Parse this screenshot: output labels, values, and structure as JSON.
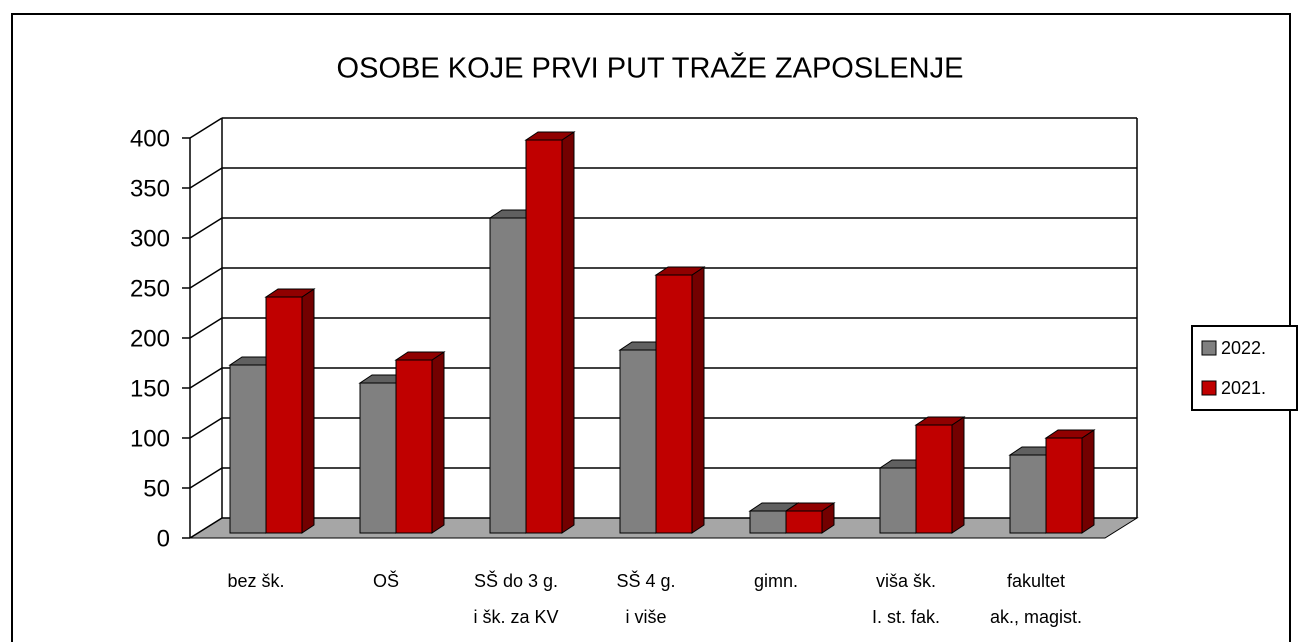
{
  "chart_data": {
    "type": "bar3d",
    "title": "OSOBE KOJE PRVI PUT TRAŽE ZAPOSLENJE",
    "categories": [
      "bez šk.",
      "OŠ",
      "SŠ do 3 g.\ni šk. za KV",
      "SŠ 4 g.\ni više",
      "gimn.",
      "viša šk.\nI. st. fak.",
      "fakultet\nak., magist."
    ],
    "series": [
      {
        "name": "2022.",
        "color": "#808080",
        "values": [
          168,
          150,
          315,
          183,
          22,
          65,
          78
        ]
      },
      {
        "name": "2021.",
        "color": "#c00000",
        "values": [
          236,
          173,
          393,
          258,
          22,
          108,
          95
        ]
      }
    ],
    "ylim": [
      0,
      400
    ],
    "yticks": [
      0,
      50,
      100,
      150,
      200,
      250,
      300,
      350,
      400
    ],
    "grid": true,
    "legend": "right"
  }
}
